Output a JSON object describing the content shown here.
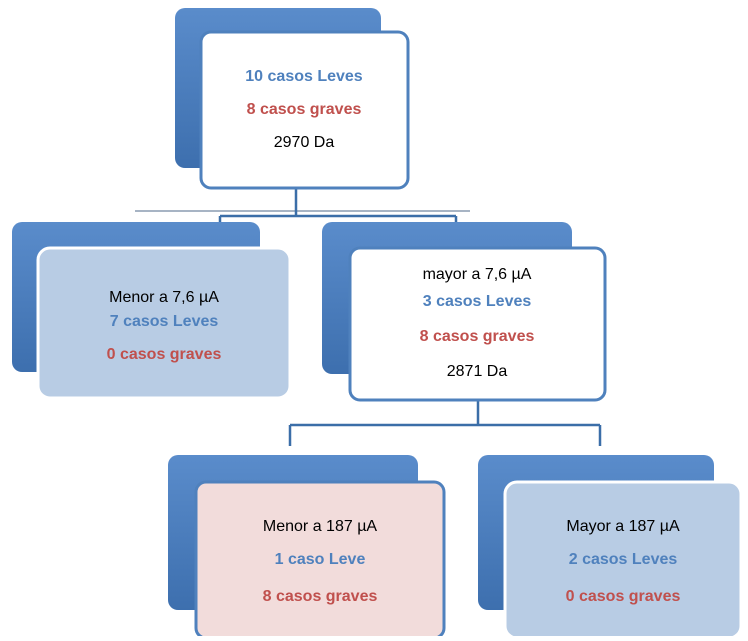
{
  "nodes": [
    {
      "lines": [
        "10 casos Leves",
        "8 casos graves",
        "2970 Da"
      ]
    },
    {
      "lines": [
        "Menor  a 7,6 µA",
        "7 casos Leves",
        "0 casos graves"
      ]
    },
    {
      "lines": [
        "mayor  a   7,6 µA",
        "3 casos Leves",
        "8 casos graves",
        "2871 Da"
      ]
    },
    {
      "lines": [
        "Menor  a 187 µA",
        "1 caso Leve",
        "8 casos graves"
      ]
    },
    {
      "lines": [
        "Mayor a  187 µA",
        "2 casos Leves",
        "0 casos graves"
      ]
    }
  ]
}
